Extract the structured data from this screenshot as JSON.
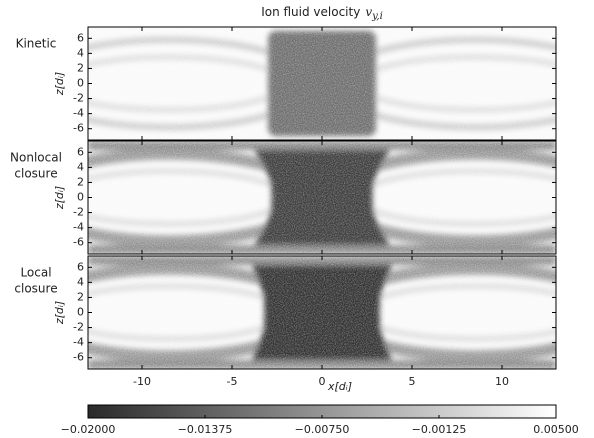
{
  "chart_data": [
    {
      "type": "heatmap",
      "title": "Ion fluid velocity",
      "title_var": "v",
      "title_sub": "y,i",
      "label": [
        "Kinetic"
      ],
      "ylabel": "z[dᵢ]",
      "xlim": [
        -13,
        13
      ],
      "ylim": [
        -7.5,
        7.5
      ],
      "xticks": [
        -10,
        -5,
        0,
        5,
        10
      ],
      "yticks": [
        -6,
        -4,
        -2,
        0,
        2,
        4,
        6
      ]
    },
    {
      "type": "heatmap",
      "label": [
        "Nonlocal",
        "closure"
      ],
      "ylabel": "z[dᵢ]",
      "xlim": [
        -13,
        13
      ],
      "ylim": [
        -7.5,
        7.5
      ],
      "xticks": [
        -10,
        -5,
        0,
        5,
        10
      ],
      "yticks": [
        -6,
        -4,
        -2,
        0,
        2,
        4,
        6
      ]
    },
    {
      "type": "heatmap",
      "label": [
        "Local",
        "closure"
      ],
      "ylabel": "z[dᵢ]",
      "xlabel": "x[dᵢ]",
      "xlim": [
        -13,
        13
      ],
      "ylim": [
        -7.5,
        7.5
      ],
      "xticks": [
        -10,
        -5,
        0,
        5,
        10
      ],
      "yticks": [
        -6,
        -4,
        -2,
        0,
        2,
        4,
        6
      ]
    },
    {
      "type": "colorbar",
      "clim": [
        -0.02,
        0.005
      ],
      "colormap": [
        "#2a2a2a",
        "#ffffff"
      ],
      "ticks": [
        {
          "value": -0.02,
          "label": "−0.02000"
        },
        {
          "value": -0.01375,
          "label": "−0.01375"
        },
        {
          "value": -0.0075,
          "label": "−0.00750"
        },
        {
          "value": -0.00125,
          "label": "−0.00125"
        },
        {
          "value": 0.005,
          "label": "0.00500"
        }
      ]
    }
  ]
}
